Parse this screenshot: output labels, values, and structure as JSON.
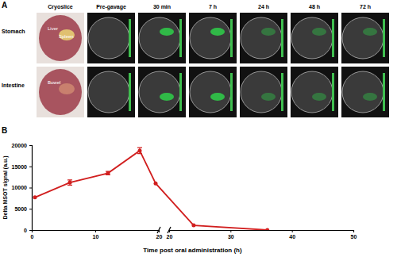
{
  "panel_a": {
    "label": "A",
    "columns": [
      "Cryoslice",
      "Pre-gavage",
      "30 min",
      "7 h",
      "24 h",
      "48 h",
      "72 h"
    ],
    "rows": [
      "Stomach",
      "Intestine"
    ],
    "cryoslice_labels": [
      [
        "Liver",
        "Spleen"
      ],
      [
        "Bowel"
      ]
    ]
  },
  "chart_data": {
    "type": "line",
    "panel_label": "B",
    "x_label": "Time post oral administration (h)",
    "y_label": "Delta MSOT signal (a.u.)",
    "x": [
      0.5,
      6,
      12,
      17,
      19.5,
      24,
      36
    ],
    "values": [
      7700,
      11200,
      13400,
      18700,
      11000,
      1100,
      0
    ],
    "errors": [
      0,
      600,
      400,
      700,
      0,
      0,
      0
    ],
    "color": "#d11f1f",
    "marker": "circle",
    "xlim": [
      [
        0,
        20
      ],
      [
        20,
        50
      ]
    ],
    "xticks": [
      [
        0,
        10,
        20
      ],
      [
        20,
        30,
        40,
        50
      ]
    ],
    "ylim": [
      0,
      20000
    ],
    "yticks": [
      0,
      5000,
      10000,
      15000,
      20000
    ],
    "grid": false
  }
}
